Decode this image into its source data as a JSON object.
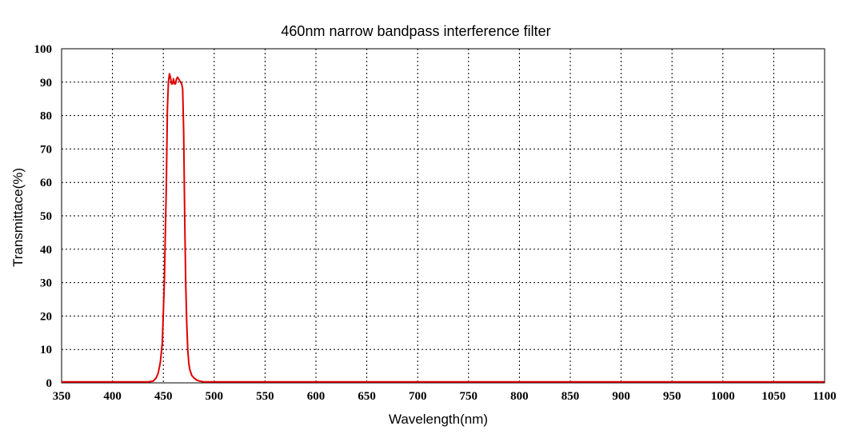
{
  "chart_data": {
    "type": "line",
    "title": "460nm narrow bandpass interference filter",
    "xlabel": "Wavelength(nm)",
    "ylabel": "Transmittace(%)",
    "xlim": [
      350,
      1100
    ],
    "ylim": [
      0,
      100
    ],
    "x_ticks": [
      "350",
      "400",
      "450",
      "500",
      "550",
      "600",
      "650",
      "700",
      "750",
      "800",
      "850",
      "900",
      "950",
      "1000",
      "1050",
      "1100"
    ],
    "y_ticks": [
      "0",
      "10",
      "20",
      "30",
      "40",
      "50",
      "60",
      "70",
      "80",
      "90",
      "100"
    ],
    "grid": true,
    "line_color": "#e00000",
    "series": [
      {
        "x": [
          350,
          400,
          435,
          440,
          443,
          445,
          447,
          449,
          451,
          453,
          454,
          455,
          456,
          457,
          458,
          459,
          460,
          461,
          462,
          463,
          464,
          465,
          466,
          467,
          468,
          469,
          470,
          471,
          472,
          473,
          474,
          475,
          476,
          478,
          480,
          483,
          486,
          490,
          500,
          600,
          800,
          1100
        ],
        "y": [
          0.3,
          0.3,
          0.3,
          0.5,
          1.5,
          3,
          6,
          12,
          30,
          60,
          82,
          90,
          92.5,
          91.5,
          89.5,
          89.5,
          91,
          89.5,
          89.5,
          91,
          91.5,
          91,
          90.5,
          90,
          89.5,
          88,
          75,
          50,
          30,
          18,
          10,
          6,
          4,
          2.2,
          1.5,
          0.8,
          0.5,
          0.3,
          0.3,
          0.3,
          0.3,
          0.3
        ]
      }
    ]
  }
}
